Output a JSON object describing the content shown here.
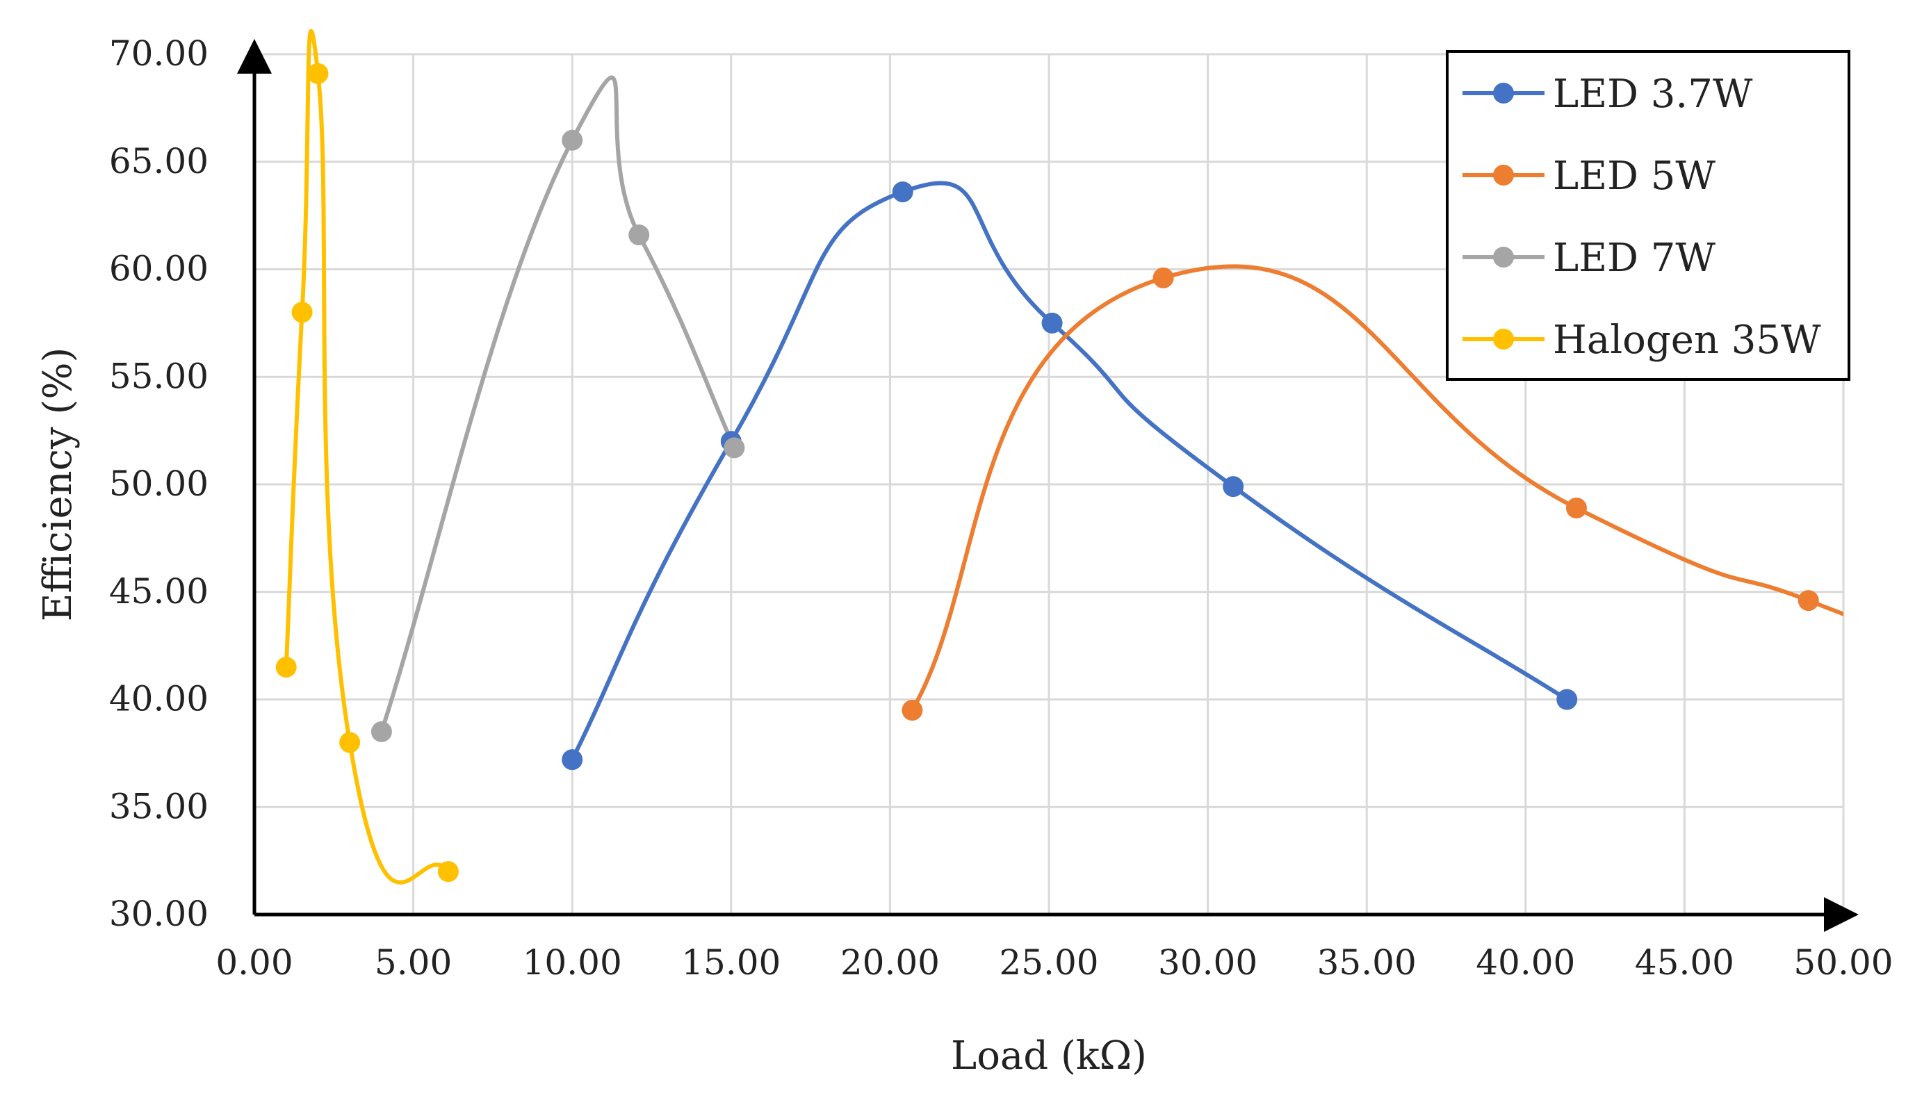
{
  "chart_data": {
    "type": "line",
    "title": "",
    "xlabel": "Load (kΩ)",
    "ylabel": "Efficiency (%)",
    "xlim": [
      0,
      50
    ],
    "ylim": [
      30,
      70
    ],
    "x_ticks": [
      "0.00",
      "5.00",
      "10.00",
      "15.00",
      "20.00",
      "25.00",
      "30.00",
      "35.00",
      "40.00",
      "45.00",
      "50.00"
    ],
    "y_ticks": [
      "30.00",
      "35.00",
      "40.00",
      "45.00",
      "50.00",
      "55.00",
      "60.00",
      "65.00",
      "70.00"
    ],
    "grid": true,
    "legend_position": "top-right",
    "series": [
      {
        "name": "LED 3.7W",
        "color": "#4472C4",
        "x": [
          10.0,
          15.0,
          20.4,
          25.1,
          30.8,
          41.3
        ],
        "y": [
          37.2,
          52.0,
          63.6,
          57.5,
          49.9,
          40.0
        ]
      },
      {
        "name": "LED 5W",
        "color": "#ED7D31",
        "x": [
          20.7,
          28.6,
          41.6,
          48.9
        ],
        "y": [
          39.5,
          59.6,
          48.9,
          44.6
        ]
      },
      {
        "name": "LED 7W",
        "color": "#A5A5A5",
        "x": [
          4.0,
          10.0,
          12.1,
          15.1
        ],
        "y": [
          38.5,
          66.0,
          61.6,
          51.7
        ]
      },
      {
        "name": "Halogen 35W",
        "color": "#FFC000",
        "x": [
          1.0,
          1.5,
          2.0,
          3.0,
          6.1
        ],
        "y": [
          41.5,
          58.0,
          69.1,
          38.0,
          32.0
        ]
      }
    ]
  }
}
